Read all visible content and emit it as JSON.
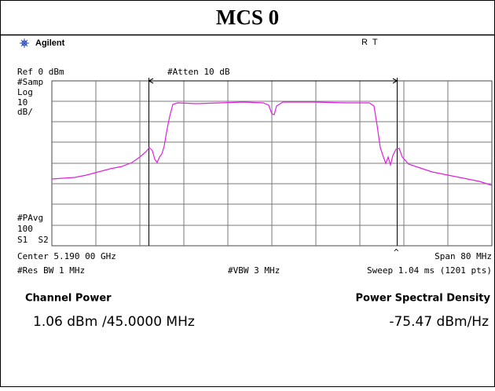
{
  "title": "MCS 0",
  "header": {
    "brand": "Agilent",
    "status": "R  T"
  },
  "labels": {
    "ref": "Ref 0 dBm",
    "atten": "#Atten 10 dB",
    "samp": "#Samp",
    "log": "Log",
    "scale": "10",
    "scale_unit": "dB/",
    "pavg": "#PAvg",
    "pavg_count": "100",
    "s1s2": "S1  S2",
    "center": "Center 5.190 00 GHz",
    "span": "Span 80 MHz",
    "res_bw": "#Res BW 1 MHz",
    "vbw": "#VBW 3 MHz",
    "sweep": "Sweep 1.04 ms (1201 pts)"
  },
  "results": {
    "channel_power_label": "Channel Power",
    "channel_power": "1.06 dBm",
    "bandwidth": "/45.0000 MHz",
    "psd_label": "Power Spectral Density",
    "psd": "-75.47 dBm/Hz"
  }
}
